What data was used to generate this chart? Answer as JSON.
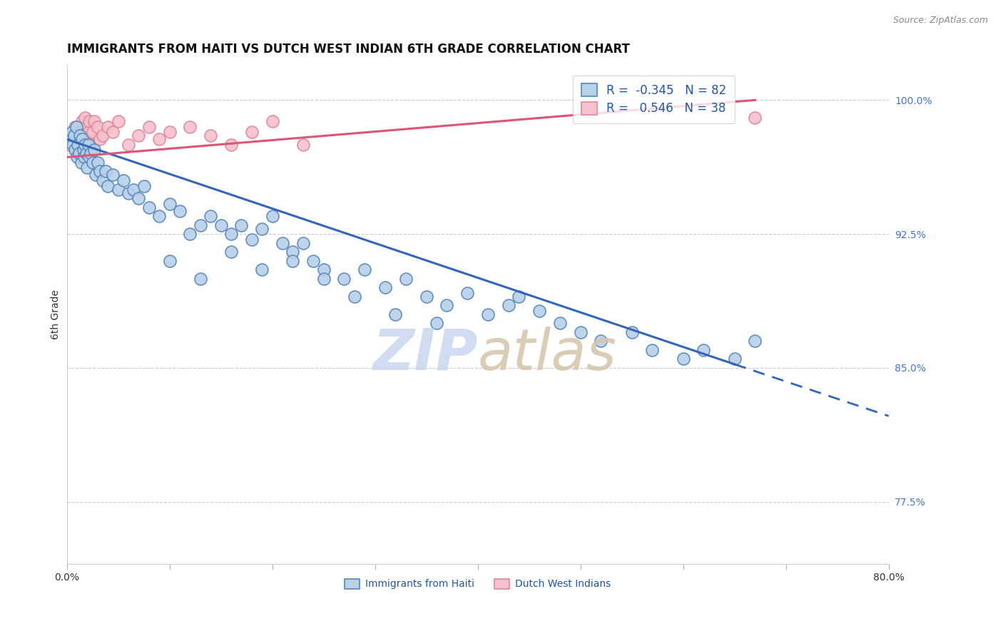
{
  "title": "IMMIGRANTS FROM HAITI VS DUTCH WEST INDIAN 6TH GRADE CORRELATION CHART",
  "source": "Source: ZipAtlas.com",
  "ylabel": "6th Grade",
  "y_ticks": [
    77.5,
    85.0,
    92.5,
    100.0
  ],
  "y_tick_labels": [
    "77.5%",
    "85.0%",
    "92.5%",
    "100.0%"
  ],
  "xlim": [
    0.0,
    80.0
  ],
  "ylim": [
    74.0,
    102.0
  ],
  "haiti_R": -0.345,
  "haiti_N": 82,
  "dutch_R": 0.546,
  "dutch_N": 38,
  "haiti_color": "#b8d0e8",
  "haiti_edge_color": "#5588bb",
  "dutch_color": "#f5c0cc",
  "dutch_edge_color": "#dd8899",
  "haiti_trend_color": "#3366bb",
  "dutch_trend_color": "#dd5577",
  "background_color": "#ffffff",
  "grid_color": "#cccccc",
  "haiti_x": [
    0.3,
    0.5,
    0.6,
    0.7,
    0.8,
    0.9,
    1.0,
    1.1,
    1.2,
    1.3,
    1.4,
    1.5,
    1.6,
    1.7,
    1.8,
    1.9,
    2.0,
    2.1,
    2.2,
    2.3,
    2.5,
    2.7,
    2.8,
    3.0,
    3.2,
    3.5,
    3.8,
    4.0,
    4.5,
    5.0,
    5.5,
    6.0,
    6.5,
    7.0,
    7.5,
    8.0,
    9.0,
    10.0,
    11.0,
    12.0,
    13.0,
    14.0,
    15.0,
    16.0,
    17.0,
    18.0,
    19.0,
    20.0,
    21.0,
    22.0,
    23.0,
    24.0,
    25.0,
    27.0,
    29.0,
    31.0,
    33.0,
    35.0,
    37.0,
    39.0,
    41.0,
    43.0,
    44.0,
    46.0,
    48.0,
    50.0,
    52.0,
    55.0,
    57.0,
    60.0,
    62.0,
    65.0,
    67.0,
    10.0,
    13.0,
    16.0,
    19.0,
    22.0,
    25.0,
    28.0,
    32.0,
    36.0
  ],
  "haiti_y": [
    97.8,
    98.2,
    97.5,
    98.0,
    97.2,
    98.5,
    96.8,
    97.5,
    97.0,
    98.0,
    96.5,
    97.8,
    97.2,
    96.8,
    97.5,
    97.0,
    96.2,
    97.5,
    96.8,
    97.0,
    96.5,
    97.2,
    95.8,
    96.5,
    96.0,
    95.5,
    96.0,
    95.2,
    95.8,
    95.0,
    95.5,
    94.8,
    95.0,
    94.5,
    95.2,
    94.0,
    93.5,
    94.2,
    93.8,
    92.5,
    93.0,
    93.5,
    93.0,
    92.5,
    93.0,
    92.2,
    92.8,
    93.5,
    92.0,
    91.5,
    92.0,
    91.0,
    90.5,
    90.0,
    90.5,
    89.5,
    90.0,
    89.0,
    88.5,
    89.2,
    88.0,
    88.5,
    89.0,
    88.2,
    87.5,
    87.0,
    86.5,
    87.0,
    86.0,
    85.5,
    86.0,
    85.5,
    86.5,
    91.0,
    90.0,
    91.5,
    90.5,
    91.0,
    90.0,
    89.0,
    88.0,
    87.5
  ],
  "dutch_x": [
    0.3,
    0.5,
    0.6,
    0.8,
    0.9,
    1.0,
    1.1,
    1.2,
    1.3,
    1.5,
    1.6,
    1.7,
    1.8,
    1.9,
    2.0,
    2.1,
    2.2,
    2.3,
    2.5,
    2.7,
    3.0,
    3.2,
    3.5,
    4.0,
    4.5,
    5.0,
    6.0,
    7.0,
    8.0,
    9.0,
    10.0,
    12.0,
    14.0,
    16.0,
    18.0,
    20.0,
    23.0,
    67.0
  ],
  "dutch_y": [
    97.5,
    98.0,
    97.8,
    98.5,
    97.2,
    98.0,
    98.5,
    97.5,
    98.2,
    98.8,
    97.5,
    98.0,
    99.0,
    98.5,
    97.8,
    98.2,
    98.8,
    97.5,
    98.2,
    98.8,
    98.5,
    97.8,
    98.0,
    98.5,
    98.2,
    98.8,
    97.5,
    98.0,
    98.5,
    97.8,
    98.2,
    98.5,
    98.0,
    97.5,
    98.2,
    98.8,
    97.5,
    99.0
  ],
  "haiti_trend_x0": 0.0,
  "haiti_trend_y0": 97.8,
  "haiti_trend_x1": 65.0,
  "haiti_trend_y1": 85.2,
  "haiti_trend_x2": 80.0,
  "haiti_trend_y2": 82.3,
  "dutch_trend_x0": 0.0,
  "dutch_trend_y0": 96.8,
  "dutch_trend_x1": 67.0,
  "dutch_trend_y1": 100.0
}
